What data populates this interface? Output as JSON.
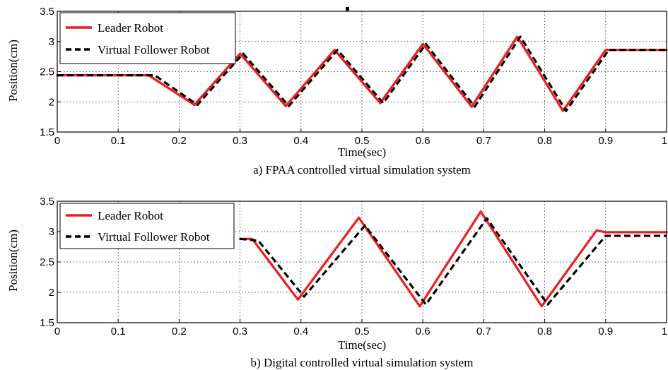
{
  "colors": {
    "leader": "#ee1c1c",
    "follower": "#000000"
  },
  "chart_data": [
    {
      "type": "line",
      "caption": "a) FPAA controlled virtual simulation system",
      "xlabel": "Time(sec)",
      "ylabel": "Position(cm)",
      "xlim": [
        0,
        1
      ],
      "ylim": [
        1.5,
        3.5
      ],
      "xticks": [
        "0",
        "0.1",
        "0.2",
        "0.3",
        "0.4",
        "0.5",
        "0.6",
        "0.7",
        "0.8",
        "0.9",
        "1"
      ],
      "yticks": [
        "1.5",
        "2",
        "2.5",
        "3",
        "3.5"
      ],
      "grid": true,
      "legend": "top-left",
      "series": [
        {
          "name": "Leader Robot",
          "style": "solid",
          "x": [
            0,
            0.15,
            0.225,
            0.3,
            0.375,
            0.455,
            0.53,
            0.6,
            0.68,
            0.755,
            0.83,
            0.9,
            1.0
          ],
          "y": [
            2.44,
            2.44,
            1.95,
            2.8,
            1.93,
            2.86,
            1.98,
            2.96,
            1.92,
            3.08,
            1.85,
            2.86,
            2.86
          ]
        },
        {
          "name": "Virtual Follower Robot",
          "style": "dashed",
          "x": [
            0,
            0.16,
            0.23,
            0.305,
            0.38,
            0.46,
            0.535,
            0.605,
            0.685,
            0.76,
            0.835,
            0.905,
            1.0
          ],
          "y": [
            2.44,
            2.44,
            1.95,
            2.8,
            1.93,
            2.86,
            1.98,
            2.96,
            1.92,
            3.08,
            1.85,
            2.86,
            2.86
          ]
        }
      ]
    },
    {
      "type": "line",
      "caption": "b) Digital controlled virtual simulation system",
      "xlabel": "Time(sec)",
      "ylabel": "Position(cm)",
      "xlim": [
        0,
        1
      ],
      "ylim": [
        1.5,
        3.5
      ],
      "xticks": [
        "0",
        "0.1",
        "0.2",
        "0.3",
        "0.4",
        "0.5",
        "0.6",
        "0.7",
        "0.8",
        "0.9",
        "1"
      ],
      "yticks": [
        "1.5",
        "2",
        "2.5",
        "3",
        "3.5"
      ],
      "grid": true,
      "legend": "top-left",
      "series": [
        {
          "name": "Leader Robot",
          "style": "solid",
          "x": [
            0.3,
            0.32,
            0.395,
            0.495,
            0.595,
            0.695,
            0.795,
            0.885,
            0.9,
            1.0
          ],
          "y": [
            2.88,
            2.88,
            1.88,
            3.23,
            1.77,
            3.33,
            1.77,
            3.02,
            2.99,
            2.99
          ],
          "partial_hidden_by_legend": true
        },
        {
          "name": "Virtual Follower Robot",
          "style": "dashed",
          "x": [
            0.3,
            0.33,
            0.405,
            0.505,
            0.605,
            0.705,
            0.805,
            0.9,
            1.0
          ],
          "y": [
            2.88,
            2.85,
            1.93,
            3.1,
            1.8,
            3.22,
            1.8,
            2.93,
            2.93
          ],
          "partial_hidden_by_legend": true
        }
      ]
    }
  ]
}
